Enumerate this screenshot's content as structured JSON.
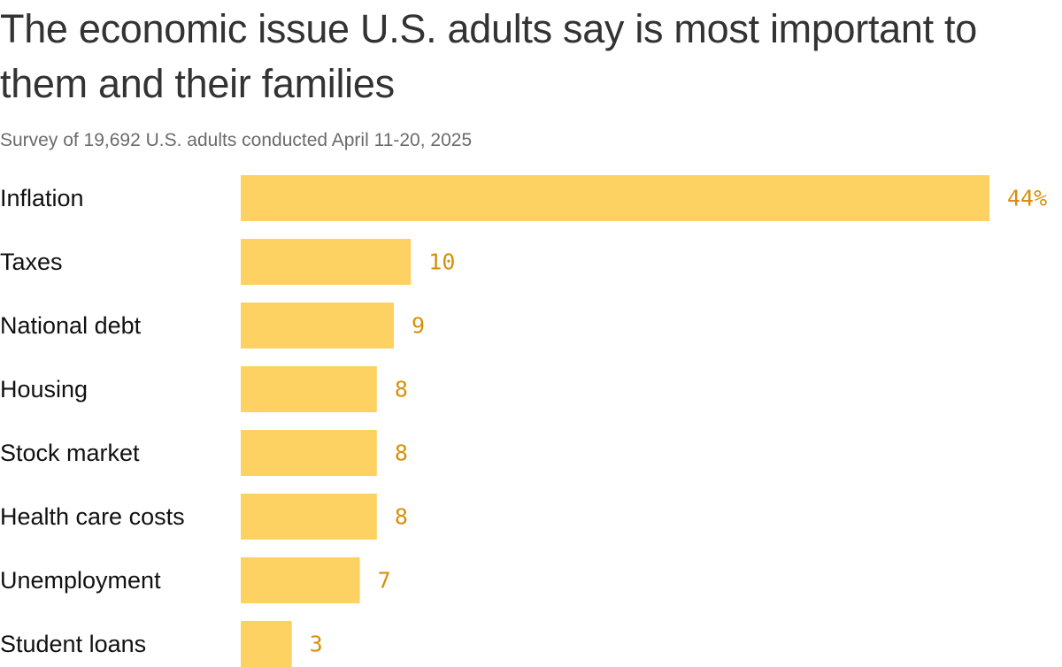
{
  "chart_data": {
    "type": "bar",
    "orientation": "horizontal",
    "title": "The economic issue U.S. adults say is most important to them and their families",
    "subtitle": "Survey of 19,692 U.S. adults conducted April 11-20, 2025",
    "categories": [
      "Inflation",
      "Taxes",
      "National debt",
      "Housing",
      "Stock market",
      "Health care costs",
      "Unemployment",
      "Student loans"
    ],
    "values": [
      44,
      10,
      9,
      8,
      8,
      8,
      7,
      3
    ],
    "value_labels": [
      "44%",
      "10",
      "9",
      "8",
      "8",
      "8",
      "7",
      "3"
    ],
    "xlim": [
      0,
      44
    ],
    "xlabel": "",
    "ylabel": "",
    "grid": false,
    "bar_color": "#fdd262",
    "value_label_color": "#d8900a"
  }
}
